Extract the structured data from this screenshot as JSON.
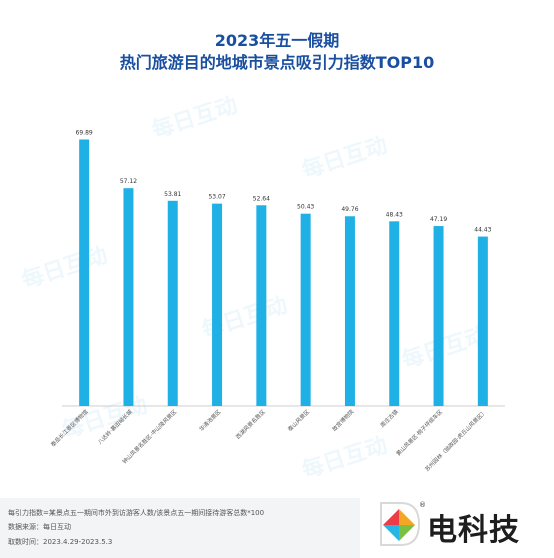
{
  "title_line1": "2023年五一假期",
  "title_line2": "热门旅游目的地城市景点吸引力指数TOP10",
  "watermark_text": "每日互动",
  "footer": {
    "index_note": "每引力指数=某景点五一期间市外到访游客人数/该景点五一期间接待游客总数*100",
    "source": "数据来源：每日互动",
    "time": "取数时间：2023.4.29-2023.5.3"
  },
  "logo": {
    "text": "电科技",
    "registered": "®"
  },
  "colors": {
    "bar": "#1fb0e6",
    "title": "#1a4fa0"
  },
  "chart_data": {
    "type": "bar",
    "title": "2023年五一假期 热门旅游目的地城市景点吸引力指数TOP10",
    "categories": [
      "泰岳长江景区博物馆",
      "八达岭·慕田峪长城",
      "钟山风景名胜区-中山陵风景区",
      "华清池景区",
      "西湖风景名胜区",
      "泰山风景区",
      "故宫博物院",
      "周庄古镇",
      "黄山风景区·桃子坪缆车区",
      "苏州园林（拙政园·虎丘山风景区）"
    ],
    "values": [
      69.89,
      57.12,
      53.81,
      53.07,
      52.64,
      50.43,
      49.76,
      48.43,
      47.19,
      44.43
    ],
    "xlabel": "",
    "ylabel": "",
    "ylim": [
      0,
      75
    ],
    "grid": false,
    "legend": "none"
  }
}
